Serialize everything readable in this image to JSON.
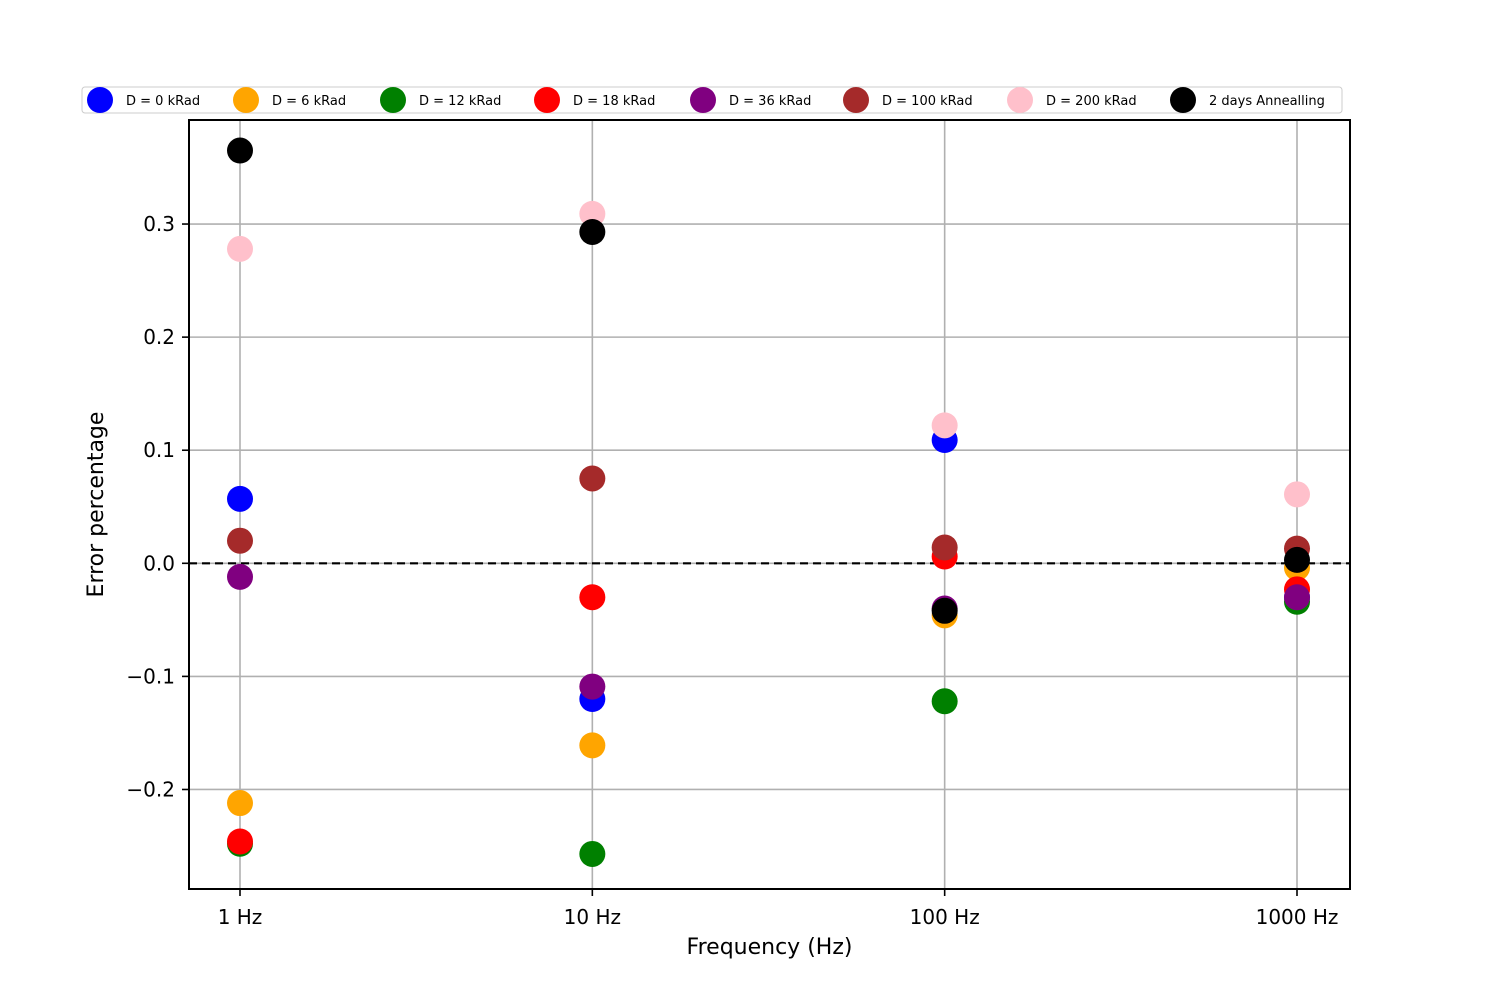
{
  "chart_data": {
    "type": "scatter",
    "x_scale": "log",
    "categories": [
      "1 Hz",
      "10 Hz",
      "100 Hz",
      "1000 Hz"
    ],
    "x_values": [
      1,
      10,
      100,
      1000
    ],
    "xlabel": "Frequency (Hz)",
    "ylabel": "Error percentage",
    "ylim": [
      -0.288,
      0.392
    ],
    "yticks": [
      -0.2,
      -0.1,
      0.0,
      0.1,
      0.2,
      0.3
    ],
    "ytick_labels": [
      "−0.2",
      "−0.1",
      "0.0",
      "0.1",
      "0.2",
      "0.3"
    ],
    "grid": true,
    "reference_line": {
      "y": 0.0,
      "style": "dashed",
      "color": "#000000"
    },
    "legend": {
      "placement": "top",
      "columns": 8
    },
    "series": [
      {
        "name": "D = 0 kRad",
        "color": "#0000ff",
        "values": [
          0.057,
          -0.12,
          0.109,
          -0.03
        ]
      },
      {
        "name": "D = 6 kRad",
        "color": "#ffa500",
        "values": [
          -0.212,
          -0.161,
          -0.046,
          -0.004
        ]
      },
      {
        "name": "D = 12 kRad",
        "color": "#008000",
        "values": [
          -0.248,
          -0.257,
          -0.122,
          -0.034
        ]
      },
      {
        "name": "D = 18 kRad",
        "color": "#ff0000",
        "values": [
          -0.246,
          -0.03,
          0.006,
          -0.023
        ]
      },
      {
        "name": "D = 36 kRad",
        "color": "#800080",
        "values": [
          -0.012,
          -0.109,
          -0.04,
          -0.03
        ]
      },
      {
        "name": "D = 100 kRad",
        "color": "#a52a2a",
        "values": [
          0.02,
          0.075,
          0.014,
          0.013
        ]
      },
      {
        "name": "D = 200 kRad",
        "color": "#ffc0cb",
        "values": [
          0.278,
          0.309,
          0.122,
          0.061
        ]
      },
      {
        "name": "2 days Annealling",
        "color": "#000000",
        "values": [
          0.365,
          0.293,
          -0.042,
          0.003
        ]
      }
    ]
  }
}
